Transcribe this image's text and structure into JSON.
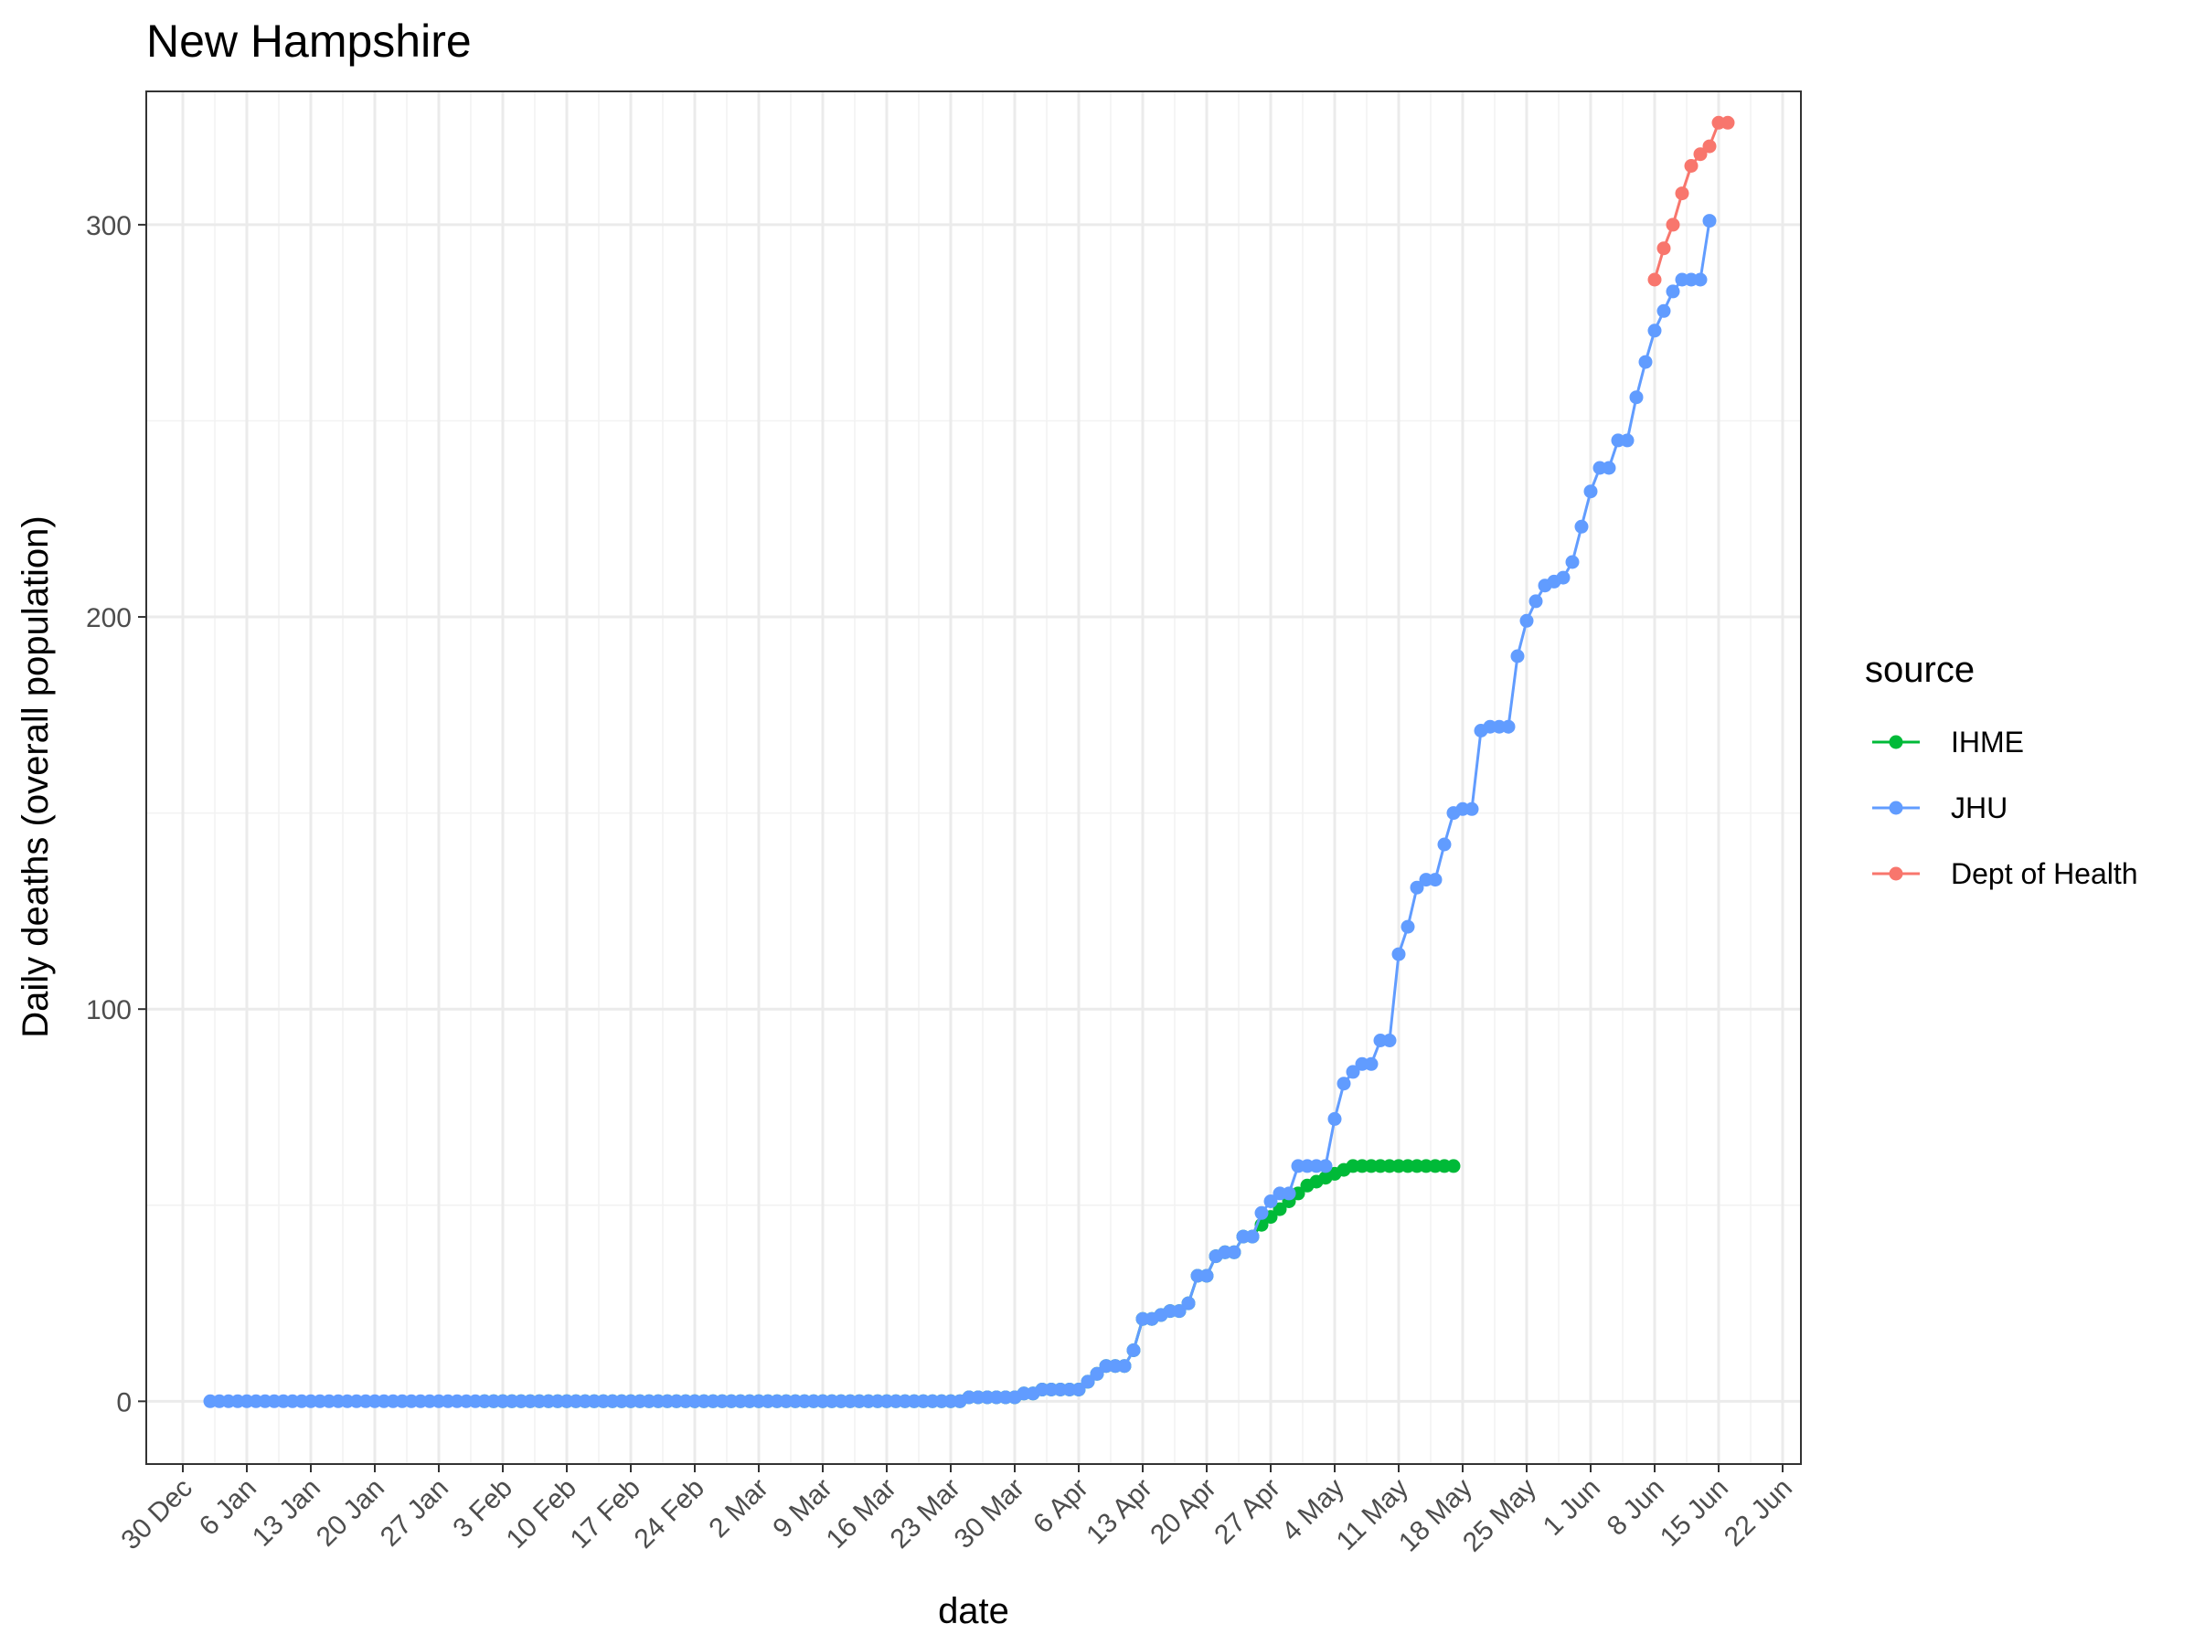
{
  "chart_data": {
    "type": "line",
    "title": "New Hampshire",
    "xlabel": "date",
    "ylabel": "Daily deaths (overall population)",
    "x_start": "2020-01-02",
    "xlim": [
      "2019-12-26",
      "2020-06-24"
    ],
    "ylim": [
      -16,
      334
    ],
    "grid": true,
    "legend_title": "source",
    "legend_position": "right",
    "x_ticks": [
      "30 Dec",
      "6 Jan",
      "13 Jan",
      "20 Jan",
      "27 Jan",
      "3 Feb",
      "10 Feb",
      "17 Feb",
      "24 Feb",
      "2 Mar",
      "9 Mar",
      "16 Mar",
      "23 Mar",
      "30 Mar",
      "6 Apr",
      "13 Apr",
      "20 Apr",
      "27 Apr",
      "4 May",
      "11 May",
      "18 May",
      "25 May",
      "1 Jun",
      "8 Jun",
      "15 Jun",
      "22 Jun"
    ],
    "y_ticks": [
      "0",
      "100",
      "200",
      "300"
    ],
    "series": [
      {
        "name": "IHME",
        "color": "#00BA38",
        "start": "2020-02-01",
        "values": [
          0,
          0,
          0,
          0,
          0,
          0,
          0,
          0,
          0,
          0,
          0,
          0,
          0,
          0,
          0,
          0,
          0,
          0,
          0,
          0,
          0,
          0,
          0,
          0,
          0,
          0,
          0,
          0,
          0,
          0,
          0,
          0,
          0,
          0,
          0,
          0,
          0,
          0,
          0,
          0,
          0,
          0,
          0,
          0,
          0,
          0,
          0,
          0,
          0,
          0,
          0,
          0,
          0,
          1,
          1,
          1,
          1,
          1,
          1,
          2,
          2,
          3,
          3,
          3,
          3,
          3,
          5,
          7,
          9,
          9,
          9,
          13,
          21,
          21,
          22,
          23,
          23,
          25,
          32,
          32,
          37,
          38,
          38,
          42,
          42,
          45,
          47,
          49,
          51,
          53,
          55,
          56,
          57,
          58,
          59,
          60,
          60,
          60,
          60,
          60,
          60,
          60,
          60,
          60,
          60,
          60,
          60
        ]
      },
      {
        "name": "JHU",
        "color": "#619CFF",
        "start": "2020-01-02",
        "values": [
          0,
          0,
          0,
          0,
          0,
          0,
          0,
          0,
          0,
          0,
          0,
          0,
          0,
          0,
          0,
          0,
          0,
          0,
          0,
          0,
          0,
          0,
          0,
          0,
          0,
          0,
          0,
          0,
          0,
          0,
          0,
          0,
          0,
          0,
          0,
          0,
          0,
          0,
          0,
          0,
          0,
          0,
          0,
          0,
          0,
          0,
          0,
          0,
          0,
          0,
          0,
          0,
          0,
          0,
          0,
          0,
          0,
          0,
          0,
          0,
          0,
          0,
          0,
          0,
          0,
          0,
          0,
          0,
          0,
          0,
          0,
          0,
          0,
          0,
          0,
          0,
          0,
          0,
          0,
          0,
          0,
          0,
          0,
          1,
          1,
          1,
          1,
          1,
          1,
          2,
          2,
          3,
          3,
          3,
          3,
          3,
          5,
          7,
          9,
          9,
          9,
          13,
          21,
          21,
          22,
          23,
          23,
          25,
          32,
          32,
          37,
          38,
          38,
          42,
          42,
          48,
          51,
          53,
          53,
          60,
          60,
          60,
          60,
          72,
          81,
          84,
          86,
          86,
          92,
          92,
          114,
          121,
          131,
          133,
          133,
          142,
          150,
          151,
          151,
          171,
          172,
          172,
          172,
          190,
          199,
          204,
          208,
          209,
          210,
          214,
          223,
          232,
          238,
          238,
          245,
          245,
          256,
          265,
          273,
          278,
          283,
          286,
          286,
          286,
          301
        ]
      },
      {
        "name": "Dept of Health",
        "color": "#F8766D",
        "start": "2020-06-08",
        "values": [
          286,
          294,
          300,
          308,
          315,
          318,
          320,
          326,
          326
        ]
      }
    ]
  }
}
